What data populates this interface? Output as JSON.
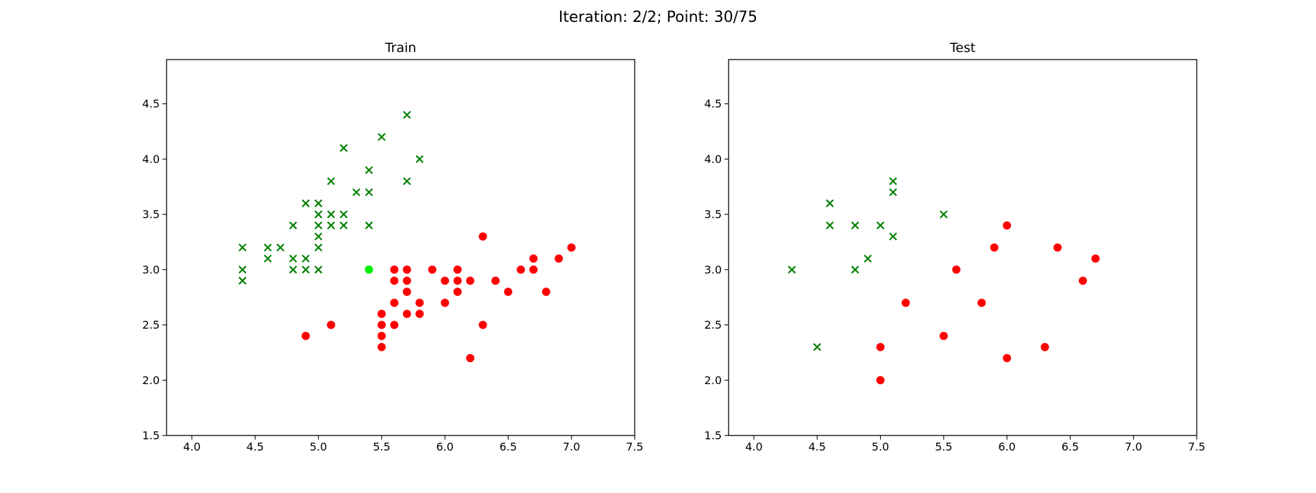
{
  "figure": {
    "suptitle": "Iteration: 2/2; Point: 30/75"
  },
  "colors": {
    "class_a": "#008000",
    "class_b": "#ff0000",
    "highlight": "#00ee00"
  },
  "chart_data": [
    {
      "type": "scatter",
      "title": "Train",
      "xlabel": "",
      "ylabel": "",
      "xlim": [
        3.8,
        7.5
      ],
      "ylim": [
        1.5,
        4.9
      ],
      "xticks": [
        "4.0",
        "4.5",
        "5.0",
        "5.5",
        "6.0",
        "6.5",
        "7.0",
        "7.5"
      ],
      "yticks": [
        "1.5",
        "2.0",
        "2.5",
        "3.0",
        "3.5",
        "4.0",
        "4.5"
      ],
      "grid": false,
      "series": [
        {
          "marker": "x",
          "color": "#008000",
          "points": [
            [
              4.4,
              3.2
            ],
            [
              4.4,
              3.0
            ],
            [
              4.4,
              2.9
            ],
            [
              4.6,
              3.2
            ],
            [
              4.6,
              3.1
            ],
            [
              4.7,
              3.2
            ],
            [
              4.8,
              3.4
            ],
            [
              4.8,
              3.1
            ],
            [
              4.8,
              3.0
            ],
            [
              4.9,
              3.6
            ],
            [
              4.9,
              3.1
            ],
            [
              4.9,
              3.0
            ],
            [
              5.0,
              3.6
            ],
            [
              5.0,
              3.5
            ],
            [
              5.0,
              3.4
            ],
            [
              5.0,
              3.3
            ],
            [
              5.0,
              3.2
            ],
            [
              5.0,
              3.0
            ],
            [
              5.1,
              3.8
            ],
            [
              5.1,
              3.5
            ],
            [
              5.1,
              3.4
            ],
            [
              5.2,
              4.1
            ],
            [
              5.2,
              3.5
            ],
            [
              5.2,
              3.4
            ],
            [
              5.3,
              3.7
            ],
            [
              5.4,
              3.9
            ],
            [
              5.4,
              3.7
            ],
            [
              5.4,
              3.4
            ],
            [
              5.5,
              4.2
            ],
            [
              5.7,
              4.4
            ],
            [
              5.7,
              3.8
            ],
            [
              5.8,
              4.0
            ]
          ]
        },
        {
          "marker": "o",
          "color": "#ff0000",
          "points": [
            [
              4.9,
              2.4
            ],
            [
              5.1,
              2.5
            ],
            [
              5.5,
              2.6
            ],
            [
              5.5,
              2.5
            ],
            [
              5.5,
              2.4
            ],
            [
              5.5,
              2.3
            ],
            [
              5.6,
              3.0
            ],
            [
              5.6,
              2.9
            ],
            [
              5.6,
              2.7
            ],
            [
              5.6,
              2.5
            ],
            [
              5.7,
              3.0
            ],
            [
              5.7,
              2.9
            ],
            [
              5.7,
              2.8
            ],
            [
              5.7,
              2.6
            ],
            [
              5.8,
              2.7
            ],
            [
              5.8,
              2.6
            ],
            [
              5.9,
              3.0
            ],
            [
              6.0,
              2.9
            ],
            [
              6.0,
              2.7
            ],
            [
              6.1,
              3.0
            ],
            [
              6.1,
              2.9
            ],
            [
              6.1,
              2.8
            ],
            [
              6.2,
              2.9
            ],
            [
              6.2,
              2.2
            ],
            [
              6.3,
              3.3
            ],
            [
              6.3,
              2.5
            ],
            [
              6.4,
              2.9
            ],
            [
              6.5,
              2.8
            ],
            [
              6.6,
              3.0
            ],
            [
              6.7,
              3.1
            ],
            [
              6.7,
              3.0
            ],
            [
              6.8,
              2.8
            ],
            [
              6.9,
              3.1
            ],
            [
              7.0,
              3.2
            ]
          ]
        },
        {
          "marker": "o",
          "color": "#00ee00",
          "points": [
            [
              5.4,
              3.0
            ]
          ]
        }
      ]
    },
    {
      "type": "scatter",
      "title": "Test",
      "xlabel": "",
      "ylabel": "",
      "xlim": [
        3.8,
        7.5
      ],
      "ylim": [
        1.5,
        4.9
      ],
      "xticks": [
        "4.0",
        "4.5",
        "5.0",
        "5.5",
        "6.0",
        "6.5",
        "7.0",
        "7.5"
      ],
      "yticks": [
        "1.5",
        "2.0",
        "2.5",
        "3.0",
        "3.5",
        "4.0",
        "4.5"
      ],
      "grid": false,
      "series": [
        {
          "marker": "x",
          "color": "#008000",
          "points": [
            [
              4.3,
              3.0
            ],
            [
              4.5,
              2.3
            ],
            [
              4.6,
              3.6
            ],
            [
              4.6,
              3.4
            ],
            [
              4.8,
              3.4
            ],
            [
              4.8,
              3.0
            ],
            [
              4.9,
              3.1
            ],
            [
              5.0,
              3.4
            ],
            [
              5.1,
              3.8
            ],
            [
              5.1,
              3.7
            ],
            [
              5.1,
              3.3
            ],
            [
              5.5,
              3.5
            ]
          ]
        },
        {
          "marker": "o",
          "color": "#ff0000",
          "points": [
            [
              5.0,
              2.3
            ],
            [
              5.0,
              2.0
            ],
            [
              5.2,
              2.7
            ],
            [
              5.5,
              2.4
            ],
            [
              5.6,
              3.0
            ],
            [
              5.8,
              2.7
            ],
            [
              5.9,
              3.2
            ],
            [
              6.0,
              3.4
            ],
            [
              6.0,
              2.2
            ],
            [
              6.3,
              2.3
            ],
            [
              6.4,
              3.2
            ],
            [
              6.6,
              2.9
            ],
            [
              6.7,
              3.1
            ]
          ]
        }
      ]
    }
  ]
}
